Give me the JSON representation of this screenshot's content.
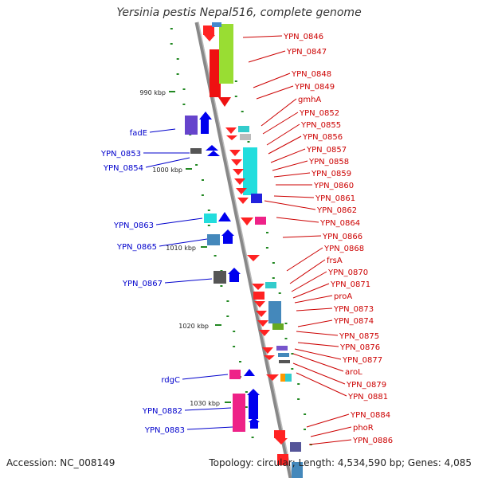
{
  "title": "Yersinia pestis Nepal516, complete genome",
  "footer": {
    "accession": "Accession: NC_008149",
    "summary": "Topology: circular; Length: 4,534,590 bp; Genes: 4,085"
  },
  "colors": {
    "backbone": "#888888",
    "forward_label": "#0000cc",
    "reverse_label": "#cc0000",
    "tick_mark": "#228822"
  },
  "ticks": [
    "990 kbp",
    "1000 kbp",
    "1010 kbp",
    "1020 kbp",
    "1030 kbp"
  ],
  "labels_left": [
    "fadE",
    "YPN_0853",
    "YPN_0854",
    "YPN_0863",
    "YPN_0865",
    "YPN_0867",
    "rdgC",
    "YPN_0882",
    "YPN_0883"
  ],
  "labels_right": [
    "YPN_0846",
    "YPN_0847",
    "YPN_0848",
    "YPN_0849",
    "gmhA",
    "YPN_0852",
    "YPN_0855",
    "YPN_0856",
    "YPN_0857",
    "YPN_0858",
    "YPN_0859",
    "YPN_0860",
    "YPN_0861",
    "YPN_0862",
    "YPN_0864",
    "YPN_0866",
    "YPN_0868",
    "frsA",
    "YPN_0870",
    "YPN_0871",
    "proA",
    "YPN_0873",
    "YPN_0874",
    "YPN_0875",
    "YPN_0876",
    "YPN_0877",
    "aroL",
    "YPN_0879",
    "YPN_0881",
    "YPN_0884",
    "phoR",
    "YPN_0886"
  ]
}
